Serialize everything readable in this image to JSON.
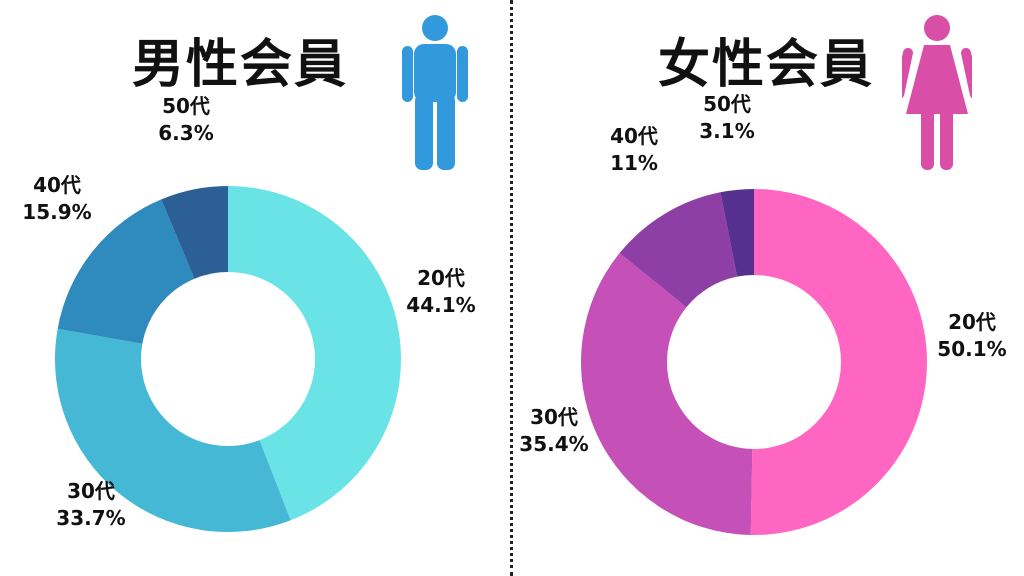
{
  "chart_data": [
    {
      "type": "pie",
      "title": "男性会員",
      "icon": "male-person-icon",
      "icon_color": "#3399dd",
      "categories": [
        "20代",
        "30代",
        "40代",
        "50代"
      ],
      "values": [
        44.1,
        33.7,
        15.9,
        6.3
      ],
      "value_labels": [
        "44.1%",
        "33.7%",
        "15.9%",
        "6.3%"
      ],
      "colors": [
        "#6ae3e6",
        "#45b8d6",
        "#2f8bbd",
        "#2c5f96"
      ]
    },
    {
      "type": "pie",
      "title": "女性会員",
      "icon": "female-person-icon",
      "icon_color": "#d94fa8",
      "categories": [
        "20代",
        "30代",
        "40代",
        "50代"
      ],
      "values": [
        50.1,
        35.4,
        11,
        3.1
      ],
      "value_labels": [
        "50.1%",
        "35.4%",
        "11%",
        "3.1%"
      ],
      "colors": [
        "#ff66c2",
        "#c550b8",
        "#8e3fa6",
        "#56308f"
      ]
    }
  ]
}
